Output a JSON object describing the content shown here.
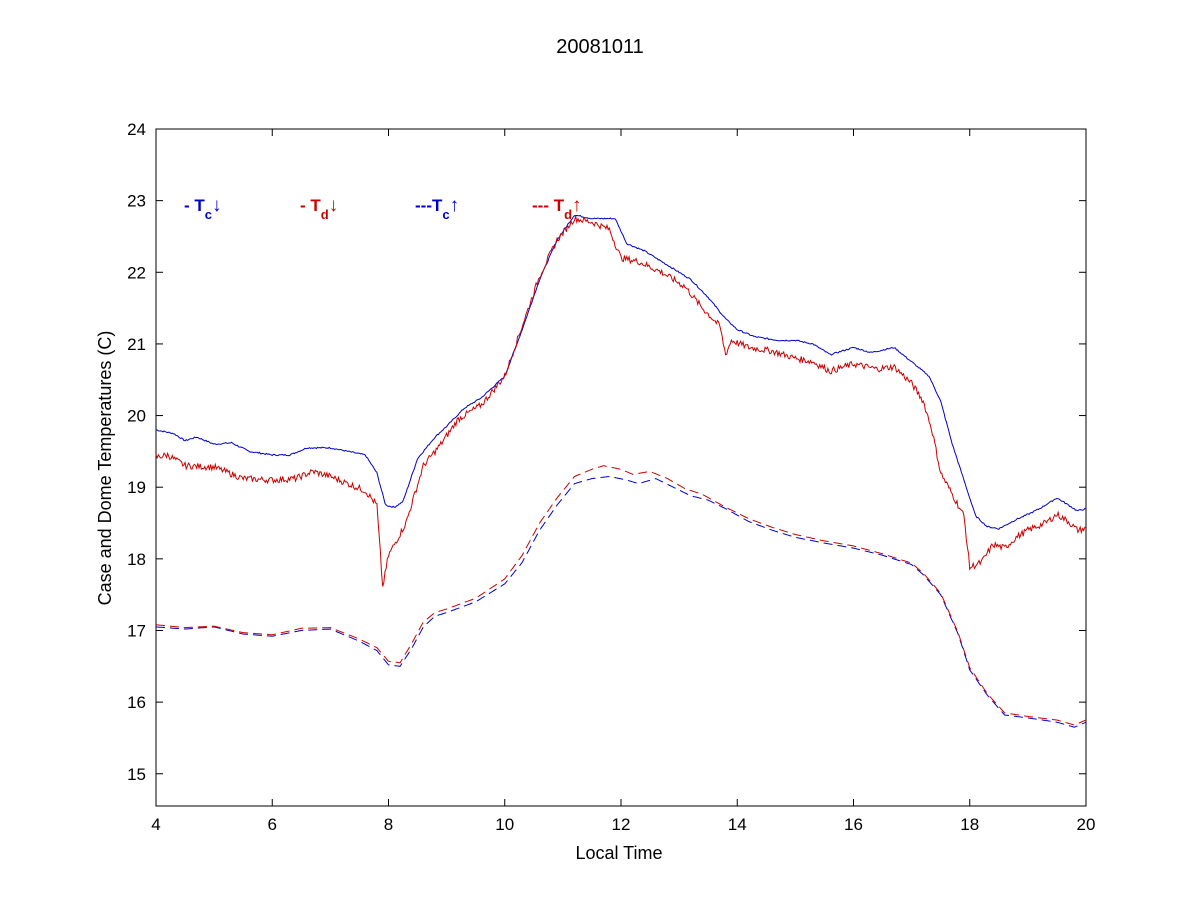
{
  "chart_data": {
    "type": "line",
    "title": "20081011",
    "xlabel": "Local Time",
    "ylabel": "Case and Dome Temperatures (C)",
    "xlim": [
      4,
      20
    ],
    "ylim": [
      14.55,
      24
    ],
    "xticks": [
      4,
      6,
      8,
      10,
      12,
      14,
      16,
      18,
      20
    ],
    "yticks": [
      15,
      16,
      17,
      18,
      19,
      20,
      21,
      22,
      23,
      24
    ],
    "grid": false,
    "legend": {
      "placement": "top-left",
      "entries": [
        {
          "prefix": "- T",
          "sub": "c",
          "arrow": "↓",
          "color": "#0000cc"
        },
        {
          "prefix": "- T",
          "sub": "d",
          "arrow": "↓",
          "color": "#cc0000"
        },
        {
          "prefix": "---T",
          "sub": "c",
          "arrow": "↑",
          "color": "#0000cc"
        },
        {
          "prefix": "--- T",
          "sub": "d",
          "arrow": "↑",
          "color": "#cc0000"
        }
      ]
    },
    "series": [
      {
        "color": "#0000cc",
        "dash": "solid",
        "noise": 0.01,
        "points": [
          [
            4,
            19.8
          ],
          [
            4.3,
            19.75
          ],
          [
            4.5,
            19.65
          ],
          [
            4.7,
            19.7
          ],
          [
            5,
            19.6
          ],
          [
            5.3,
            19.62
          ],
          [
            5.6,
            19.5
          ],
          [
            6,
            19.45
          ],
          [
            6.3,
            19.45
          ],
          [
            6.6,
            19.55
          ],
          [
            7,
            19.55
          ],
          [
            7.3,
            19.5
          ],
          [
            7.6,
            19.45
          ],
          [
            7.8,
            19.2
          ],
          [
            7.95,
            18.75
          ],
          [
            8.1,
            18.72
          ],
          [
            8.25,
            18.8
          ],
          [
            8.5,
            19.4
          ],
          [
            8.8,
            19.7
          ],
          [
            9,
            19.85
          ],
          [
            9.3,
            20.1
          ],
          [
            9.6,
            20.25
          ],
          [
            10,
            20.55
          ],
          [
            10.3,
            21.2
          ],
          [
            10.6,
            21.9
          ],
          [
            10.9,
            22.45
          ],
          [
            11.2,
            22.8
          ],
          [
            11.5,
            22.75
          ],
          [
            11.9,
            22.75
          ],
          [
            12.1,
            22.4
          ],
          [
            12.4,
            22.3
          ],
          [
            12.8,
            22.1
          ],
          [
            13.2,
            21.9
          ],
          [
            13.5,
            21.65
          ],
          [
            13.8,
            21.35
          ],
          [
            14,
            21.2
          ],
          [
            14.3,
            21.1
          ],
          [
            14.7,
            21.05
          ],
          [
            15,
            21.05
          ],
          [
            15.3,
            21
          ],
          [
            15.6,
            20.85
          ],
          [
            16,
            20.95
          ],
          [
            16.3,
            20.88
          ],
          [
            16.7,
            20.95
          ],
          [
            17,
            20.75
          ],
          [
            17.3,
            20.55
          ],
          [
            17.5,
            20.2
          ],
          [
            17.7,
            19.6
          ],
          [
            17.9,
            19.1
          ],
          [
            18.1,
            18.6
          ],
          [
            18.3,
            18.45
          ],
          [
            18.5,
            18.42
          ],
          [
            18.8,
            18.55
          ],
          [
            19,
            18.62
          ],
          [
            19.2,
            18.7
          ],
          [
            19.5,
            18.85
          ],
          [
            19.7,
            18.75
          ],
          [
            19.85,
            18.67
          ],
          [
            20,
            18.7
          ]
        ]
      },
      {
        "color": "#cc0000",
        "dash": "solid",
        "noise": 0.045,
        "points": [
          [
            4,
            19.42
          ],
          [
            4.2,
            19.45
          ],
          [
            4.5,
            19.3
          ],
          [
            5,
            19.28
          ],
          [
            5.5,
            19.12
          ],
          [
            6,
            19.1
          ],
          [
            6.4,
            19.12
          ],
          [
            6.7,
            19.22
          ],
          [
            7,
            19.15
          ],
          [
            7.3,
            19.05
          ],
          [
            7.6,
            18.95
          ],
          [
            7.8,
            18.75
          ],
          [
            7.9,
            17.6
          ],
          [
            8,
            18.05
          ],
          [
            8.1,
            18.2
          ],
          [
            8.3,
            18.5
          ],
          [
            8.6,
            19.3
          ],
          [
            8.9,
            19.6
          ],
          [
            9.2,
            19.95
          ],
          [
            9.6,
            20.15
          ],
          [
            10,
            20.55
          ],
          [
            10.3,
            21.25
          ],
          [
            10.6,
            21.95
          ],
          [
            10.9,
            22.45
          ],
          [
            11.2,
            22.75
          ],
          [
            11.5,
            22.7
          ],
          [
            11.8,
            22.6
          ],
          [
            12,
            22.2
          ],
          [
            12.3,
            22.15
          ],
          [
            12.7,
            22
          ],
          [
            13.1,
            21.8
          ],
          [
            13.4,
            21.5
          ],
          [
            13.7,
            21.25
          ],
          [
            13.8,
            20.85
          ],
          [
            13.9,
            21.05
          ],
          [
            14.2,
            20.95
          ],
          [
            14.6,
            20.9
          ],
          [
            15,
            20.8
          ],
          [
            15.3,
            20.75
          ],
          [
            15.6,
            20.62
          ],
          [
            16,
            20.72
          ],
          [
            16.4,
            20.65
          ],
          [
            16.7,
            20.68
          ],
          [
            17,
            20.45
          ],
          [
            17.2,
            20.2
          ],
          [
            17.35,
            19.8
          ],
          [
            17.5,
            19.2
          ],
          [
            17.7,
            18.9
          ],
          [
            17.9,
            18.6
          ],
          [
            18,
            17.88
          ],
          [
            18.2,
            17.95
          ],
          [
            18.4,
            18.2
          ],
          [
            18.6,
            18.15
          ],
          [
            18.8,
            18.3
          ],
          [
            19,
            18.4
          ],
          [
            19.3,
            18.5
          ],
          [
            19.5,
            18.62
          ],
          [
            19.7,
            18.52
          ],
          [
            19.85,
            18.4
          ],
          [
            20,
            18.42
          ]
        ]
      },
      {
        "color": "#0000cc",
        "dash": "dashed",
        "noise": 0,
        "points": [
          [
            4,
            17.05
          ],
          [
            4.5,
            17.02
          ],
          [
            5,
            17.05
          ],
          [
            5.5,
            16.95
          ],
          [
            6,
            16.92
          ],
          [
            6.5,
            17
          ],
          [
            7,
            17.02
          ],
          [
            7.5,
            16.85
          ],
          [
            7.8,
            16.72
          ],
          [
            8,
            16.52
          ],
          [
            8.2,
            16.5
          ],
          [
            8.4,
            16.75
          ],
          [
            8.6,
            17.05
          ],
          [
            8.8,
            17.2
          ],
          [
            9,
            17.25
          ],
          [
            9.5,
            17.4
          ],
          [
            10,
            17.65
          ],
          [
            10.3,
            17.95
          ],
          [
            10.6,
            18.4
          ],
          [
            10.9,
            18.75
          ],
          [
            11.2,
            19.05
          ],
          [
            11.5,
            19.12
          ],
          [
            11.8,
            19.15
          ],
          [
            12.1,
            19.1
          ],
          [
            12.3,
            19.05
          ],
          [
            12.6,
            19.12
          ],
          [
            12.9,
            19
          ],
          [
            13.2,
            18.88
          ],
          [
            13.5,
            18.82
          ],
          [
            13.8,
            18.7
          ],
          [
            14.2,
            18.52
          ],
          [
            14.6,
            18.4
          ],
          [
            15,
            18.3
          ],
          [
            15.5,
            18.22
          ],
          [
            16,
            18.15
          ],
          [
            16.5,
            18.05
          ],
          [
            17,
            17.92
          ],
          [
            17.2,
            17.78
          ],
          [
            17.5,
            17.5
          ],
          [
            17.8,
            16.95
          ],
          [
            18,
            16.45
          ],
          [
            18.3,
            16.1
          ],
          [
            18.6,
            15.82
          ],
          [
            19,
            15.78
          ],
          [
            19.5,
            15.72
          ],
          [
            19.8,
            15.65
          ],
          [
            20,
            15.72
          ]
        ]
      },
      {
        "color": "#cc0000",
        "dash": "dashed",
        "noise": 0,
        "points": [
          [
            4,
            17.08
          ],
          [
            4.5,
            17.04
          ],
          [
            5,
            17.06
          ],
          [
            5.5,
            16.97
          ],
          [
            6,
            16.94
          ],
          [
            6.5,
            17.03
          ],
          [
            7,
            17.04
          ],
          [
            7.5,
            16.88
          ],
          [
            7.8,
            16.76
          ],
          [
            8,
            16.57
          ],
          [
            8.2,
            16.55
          ],
          [
            8.4,
            16.82
          ],
          [
            8.6,
            17.12
          ],
          [
            8.8,
            17.25
          ],
          [
            9,
            17.3
          ],
          [
            9.5,
            17.45
          ],
          [
            10,
            17.72
          ],
          [
            10.3,
            18.05
          ],
          [
            10.6,
            18.5
          ],
          [
            10.9,
            18.85
          ],
          [
            11.2,
            19.15
          ],
          [
            11.5,
            19.25
          ],
          [
            11.7,
            19.3
          ],
          [
            12,
            19.25
          ],
          [
            12.2,
            19.18
          ],
          [
            12.5,
            19.22
          ],
          [
            12.8,
            19.12
          ],
          [
            13.1,
            18.98
          ],
          [
            13.4,
            18.9
          ],
          [
            13.8,
            18.72
          ],
          [
            14.2,
            18.56
          ],
          [
            14.6,
            18.44
          ],
          [
            15,
            18.34
          ],
          [
            15.5,
            18.25
          ],
          [
            16,
            18.18
          ],
          [
            16.5,
            18.07
          ],
          [
            17,
            17.94
          ],
          [
            17.2,
            17.8
          ],
          [
            17.5,
            17.52
          ],
          [
            17.8,
            16.97
          ],
          [
            18,
            16.48
          ],
          [
            18.3,
            16.12
          ],
          [
            18.6,
            15.85
          ],
          [
            19,
            15.8
          ],
          [
            19.5,
            15.75
          ],
          [
            19.8,
            15.68
          ],
          [
            20,
            15.75
          ]
        ]
      }
    ]
  }
}
